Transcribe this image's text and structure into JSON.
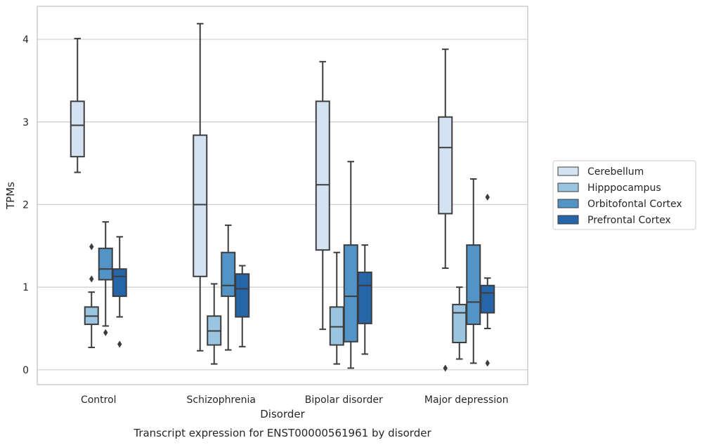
{
  "chart_data": {
    "type": "boxplot",
    "caption": "Transcript expression for ENST00000561961 by disorder",
    "xlabel": "Disorder",
    "ylabel": "TPMs",
    "ylim": [
      -0.18,
      4.4
    ],
    "yticks": [
      0,
      1,
      2,
      3,
      4
    ],
    "grid": "horizontal",
    "legend_position": "right",
    "categories": [
      "Control",
      "Schizophrenia",
      "Bipolar disorder",
      "Major depression"
    ],
    "series": [
      {
        "name": "Cerebellum",
        "color": "#d3e3f2",
        "boxes": [
          {
            "whisker_low": 2.39,
            "q1": 2.58,
            "median": 2.96,
            "q3": 3.25,
            "whisker_high": 4.01,
            "outliers": []
          },
          {
            "whisker_low": 0.23,
            "q1": 1.13,
            "median": 2.0,
            "q3": 2.84,
            "whisker_high": 4.19,
            "outliers": []
          },
          {
            "whisker_low": 0.49,
            "q1": 1.45,
            "median": 2.24,
            "q3": 3.25,
            "whisker_high": 3.73,
            "outliers": []
          },
          {
            "whisker_low": 1.23,
            "q1": 1.89,
            "median": 2.69,
            "q3": 3.06,
            "whisker_high": 3.88,
            "outliers": [
              0.02
            ]
          }
        ]
      },
      {
        "name": "Hipppocampus",
        "color": "#9ac4e0",
        "boxes": [
          {
            "whisker_low": 0.27,
            "q1": 0.55,
            "median": 0.65,
            "q3": 0.76,
            "whisker_high": 0.94,
            "outliers": [
              1.49,
              1.1
            ]
          },
          {
            "whisker_low": 0.07,
            "q1": 0.3,
            "median": 0.47,
            "q3": 0.65,
            "whisker_high": 1.04,
            "outliers": []
          },
          {
            "whisker_low": 0.07,
            "q1": 0.3,
            "median": 0.52,
            "q3": 0.76,
            "whisker_high": 1.42,
            "outliers": []
          },
          {
            "whisker_low": 0.13,
            "q1": 0.33,
            "median": 0.69,
            "q3": 0.79,
            "whisker_high": 1.0,
            "outliers": []
          }
        ]
      },
      {
        "name": "Orbitofontal Cortex",
        "color": "#5294c5",
        "boxes": [
          {
            "whisker_low": 0.53,
            "q1": 1.09,
            "median": 1.22,
            "q3": 1.47,
            "whisker_high": 1.79,
            "outliers": [
              0.45
            ]
          },
          {
            "whisker_low": 0.24,
            "q1": 0.89,
            "median": 1.02,
            "q3": 1.42,
            "whisker_high": 1.75,
            "outliers": []
          },
          {
            "whisker_low": 0.02,
            "q1": 0.34,
            "median": 0.89,
            "q3": 1.51,
            "whisker_high": 2.52,
            "outliers": []
          },
          {
            "whisker_low": 0.08,
            "q1": 0.55,
            "median": 0.82,
            "q3": 1.51,
            "whisker_high": 2.31,
            "outliers": []
          }
        ]
      },
      {
        "name": "Prefrontal Cortex",
        "color": "#2565a8",
        "boxes": [
          {
            "whisker_low": 0.64,
            "q1": 0.89,
            "median": 1.13,
            "q3": 1.22,
            "whisker_high": 1.61,
            "outliers": [
              0.31
            ]
          },
          {
            "whisker_low": 0.28,
            "q1": 0.64,
            "median": 0.98,
            "q3": 1.16,
            "whisker_high": 1.26,
            "outliers": []
          },
          {
            "whisker_low": 0.19,
            "q1": 0.56,
            "median": 1.02,
            "q3": 1.18,
            "whisker_high": 1.51,
            "outliers": []
          },
          {
            "whisker_low": 0.5,
            "q1": 0.69,
            "median": 0.93,
            "q3": 1.02,
            "whisker_high": 1.11,
            "outliers": [
              2.09,
              0.08
            ]
          }
        ]
      }
    ]
  }
}
